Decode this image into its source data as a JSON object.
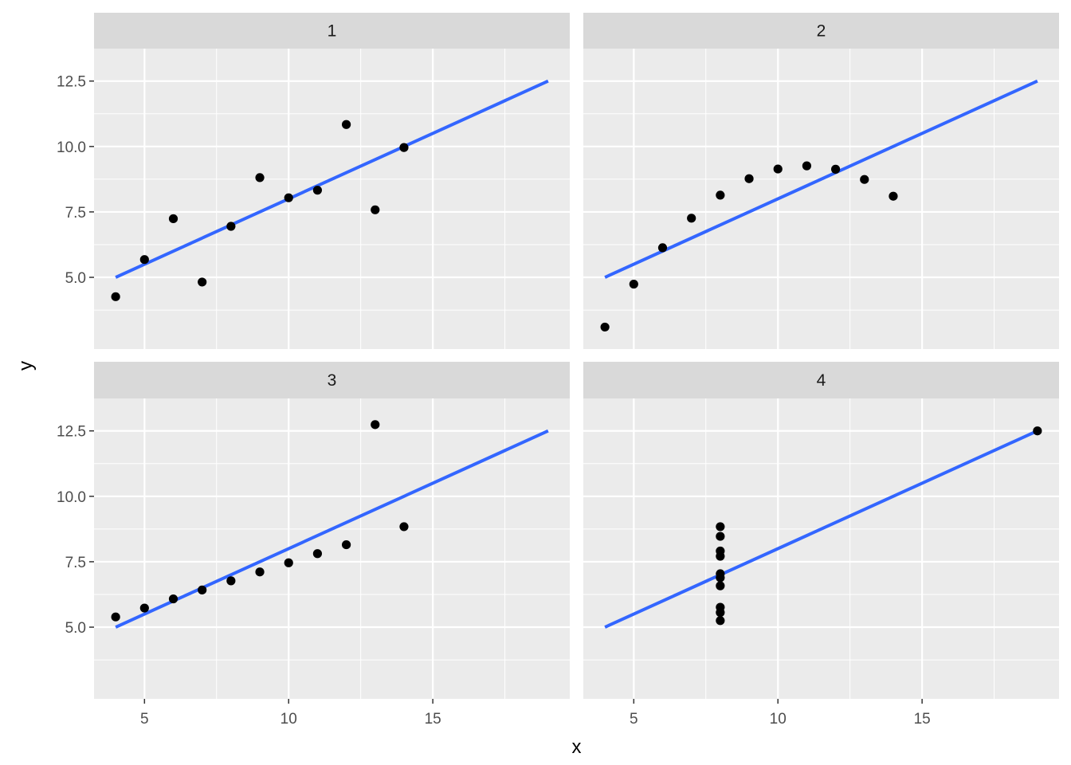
{
  "chart_data": {
    "type": "scatter",
    "xlabel": "x",
    "ylabel": "y",
    "xlim": [
      3.25,
      19.75
    ],
    "ylim": [
      2.26,
      13.74
    ],
    "x_ticks": [
      5,
      10,
      15
    ],
    "x_tick_labels": [
      "5",
      "10",
      "15"
    ],
    "y_ticks": [
      5,
      7.5,
      10,
      12.5
    ],
    "y_tick_labels": [
      "5.0",
      "7.5",
      "10.0",
      "12.5"
    ],
    "grid": true,
    "layout": "2x2 facets, shared axes",
    "colors": {
      "panel_background": "#ebebeb",
      "strip_background": "#d9d9d9",
      "grid": "#ffffff",
      "points": "#000000",
      "fit_line": "#3366ff"
    },
    "facets": [
      {
        "label": "1",
        "points": [
          [
            10,
            8.04
          ],
          [
            8,
            6.95
          ],
          [
            13,
            7.58
          ],
          [
            9,
            8.81
          ],
          [
            11,
            8.33
          ],
          [
            14,
            9.96
          ],
          [
            6,
            7.24
          ],
          [
            4,
            4.26
          ],
          [
            12,
            10.84
          ],
          [
            7,
            4.82
          ],
          [
            5,
            5.68
          ]
        ],
        "fit_line": [
          [
            4,
            5.0
          ],
          [
            19,
            12.5
          ]
        ]
      },
      {
        "label": "2",
        "points": [
          [
            10,
            9.14
          ],
          [
            8,
            8.14
          ],
          [
            13,
            8.74
          ],
          [
            9,
            8.77
          ],
          [
            11,
            9.26
          ],
          [
            14,
            8.1
          ],
          [
            6,
            6.13
          ],
          [
            4,
            3.1
          ],
          [
            12,
            9.13
          ],
          [
            7,
            7.26
          ],
          [
            5,
            4.74
          ]
        ],
        "fit_line": [
          [
            4,
            5.0
          ],
          [
            19,
            12.5
          ]
        ]
      },
      {
        "label": "3",
        "points": [
          [
            10,
            7.46
          ],
          [
            8,
            6.77
          ],
          [
            13,
            12.74
          ],
          [
            9,
            7.11
          ],
          [
            11,
            7.81
          ],
          [
            14,
            8.84
          ],
          [
            6,
            6.08
          ],
          [
            4,
            5.39
          ],
          [
            12,
            8.15
          ],
          [
            7,
            6.42
          ],
          [
            5,
            5.73
          ]
        ],
        "fit_line": [
          [
            4,
            5.0
          ],
          [
            19,
            12.5
          ]
        ]
      },
      {
        "label": "4",
        "points": [
          [
            8,
            6.58
          ],
          [
            8,
            5.76
          ],
          [
            8,
            7.71
          ],
          [
            8,
            8.84
          ],
          [
            8,
            8.47
          ],
          [
            8,
            7.04
          ],
          [
            8,
            5.25
          ],
          [
            19,
            12.5
          ],
          [
            8,
            5.56
          ],
          [
            8,
            7.91
          ],
          [
            8,
            6.89
          ]
        ],
        "fit_line": [
          [
            4,
            5.0
          ],
          [
            19,
            12.5
          ]
        ]
      }
    ]
  }
}
